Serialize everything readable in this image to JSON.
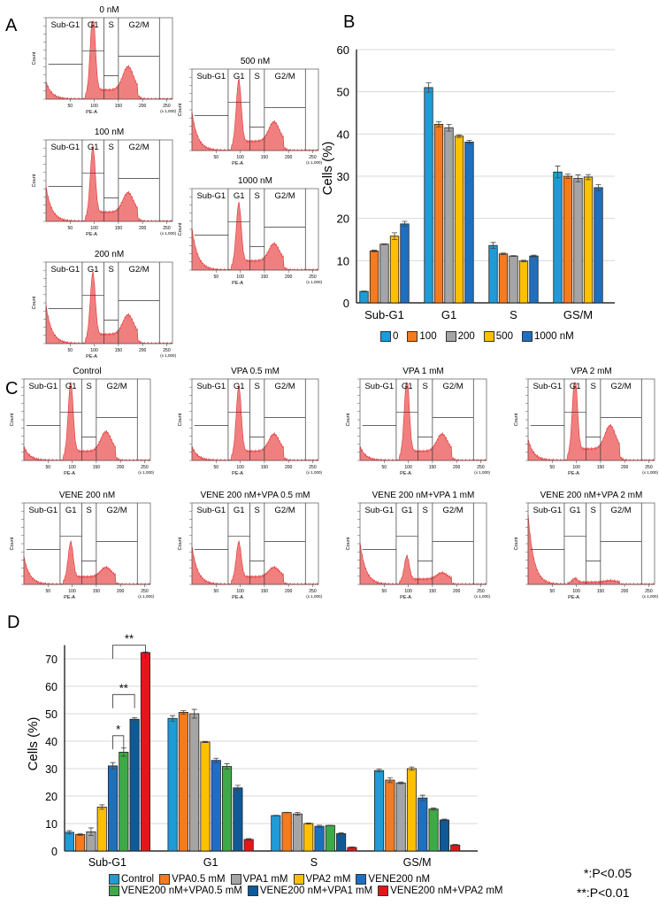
{
  "panels": {
    "A": "A",
    "B": "B",
    "C": "C",
    "D": "D"
  },
  "histogram_labels": {
    "gates": [
      "Sub-G1",
      "G1",
      "S",
      "G2/M"
    ],
    "y_axis": "Count",
    "x_axis": "PE-A",
    "x_unit": "(x 1,000)",
    "x_ticks": [
      "50",
      "100",
      "150",
      "200",
      "250"
    ]
  },
  "histograms_A": [
    {
      "title": "0 nM",
      "subg1": 0.25,
      "g1": 1.0,
      "s": 0.12,
      "g2": 0.3
    },
    {
      "title": "100 nM",
      "subg1": 0.5,
      "g1": 0.85,
      "s": 0.12,
      "g2": 0.25
    },
    {
      "title": "200 nM",
      "subg1": 0.55,
      "g1": 0.8,
      "s": 0.12,
      "g2": 0.25
    },
    {
      "title": "500 nM",
      "subg1": 0.55,
      "g1": 0.8,
      "s": 0.12,
      "g2": 0.25
    },
    {
      "title": "1000 nM",
      "subg1": 0.6,
      "g1": 0.75,
      "s": 0.12,
      "g2": 0.22
    }
  ],
  "histograms_C": [
    {
      "title": "Control",
      "subg1": 0.2,
      "g1": 0.9,
      "s": 0.12,
      "g2": 0.25
    },
    {
      "title": "VPA 0.5 mM",
      "subg1": 0.2,
      "g1": 0.85,
      "s": 0.12,
      "g2": 0.22
    },
    {
      "title": "VPA 1 mM",
      "subg1": 0.2,
      "g1": 0.95,
      "s": 0.12,
      "g2": 0.22
    },
    {
      "title": "VPA 2 mM",
      "subg1": 0.3,
      "g1": 0.95,
      "s": 0.15,
      "g2": 0.3
    },
    {
      "title": "VENE 200 nM",
      "subg1": 0.4,
      "g1": 0.45,
      "s": 0.1,
      "g2": 0.12
    },
    {
      "title": "VENE 200 nM+VPA 0.5 mM",
      "subg1": 0.55,
      "g1": 0.45,
      "s": 0.1,
      "g2": 0.12
    },
    {
      "title": "VENE 200 nM+VPA 1 mM",
      "subg1": 0.6,
      "g1": 0.3,
      "s": 0.07,
      "g2": 0.08
    },
    {
      "title": "VENE 200 nM+VPA 2 mM",
      "subg1": 1.0,
      "g1": 0.05,
      "s": 0.03,
      "g2": 0.02
    }
  ],
  "chart_data": [
    {
      "type": "bar",
      "ylabel": "Cells (%)",
      "ylim": [
        0,
        60
      ],
      "yticks": [
        0,
        10,
        20,
        30,
        40,
        50,
        60
      ],
      "grid": true,
      "legend_position": "bottom",
      "categories": [
        "Sub-G1",
        "G1",
        "S",
        "GS/M"
      ],
      "series": [
        {
          "name": "0",
          "color": "#1f9bd7",
          "values": [
            2.7,
            51,
            13.6,
            31
          ],
          "errors": [
            0.1,
            1.1,
            0.7,
            1.4
          ]
        },
        {
          "name": "100",
          "color": "#f47b20",
          "values": [
            12.3,
            42.3,
            11.6,
            30
          ],
          "errors": [
            0.2,
            0.6,
            0.2,
            0.5
          ]
        },
        {
          "name": "200",
          "color": "#a5a5a5",
          "values": [
            13.9,
            41.5,
            11.1,
            29.5
          ],
          "errors": [
            0.1,
            0.8,
            0.1,
            0.8
          ]
        },
        {
          "name": "500",
          "color": "#ffc000",
          "values": [
            15.8,
            39.5,
            9.9,
            29.8
          ],
          "errors": [
            0.8,
            0.3,
            0.2,
            0.6
          ]
        },
        {
          "name": "1000 nM",
          "color": "#1f6fc0",
          "values": [
            18.7,
            38.1,
            11.1,
            27.3
          ],
          "errors": [
            0.6,
            0.4,
            0.2,
            0.7
          ]
        }
      ]
    },
    {
      "type": "bar",
      "ylabel": "Cells (%)",
      "ylim": [
        0,
        75
      ],
      "yticks": [
        0,
        10,
        20,
        30,
        40,
        50,
        60,
        70
      ],
      "grid": true,
      "legend_position": "bottom",
      "categories": [
        "Sub-G1",
        "G1",
        "S",
        "GS/M"
      ],
      "series": [
        {
          "name": "Control",
          "color": "#1f9bd7",
          "values": [
            6.8,
            48.3,
            12.9,
            29.3
          ],
          "errors": [
            0.6,
            1.0,
            0.1,
            0.5
          ]
        },
        {
          "name": "VPA0.5 mM",
          "color": "#f47b20",
          "values": [
            6.0,
            50.5,
            14.0,
            25.8
          ],
          "errors": [
            0.3,
            0.6,
            0.1,
            0.9
          ]
        },
        {
          "name": "VPA1 mM",
          "color": "#a5a5a5",
          "values": [
            7.0,
            50.0,
            13.5,
            24.8
          ],
          "errors": [
            1.4,
            1.6,
            0.5,
            0.3
          ]
        },
        {
          "name": "VPA2 mM",
          "color": "#ffc000",
          "values": [
            16.0,
            39.7,
            10.0,
            30.0
          ],
          "errors": [
            0.8,
            0.2,
            0.2,
            0.6
          ]
        },
        {
          "name": "VENE200 nM",
          "color": "#1f6fc0",
          "values": [
            31.0,
            33.0,
            9.0,
            19.3
          ],
          "errors": [
            1.2,
            0.8,
            0.4,
            1.0
          ]
        },
        {
          "name": "VENE200 nM+VPA0.5 mM",
          "color": "#3daa47",
          "values": [
            36.0,
            30.8,
            9.3,
            15.3
          ],
          "errors": [
            1.5,
            1.0,
            0.1,
            0.4
          ]
        },
        {
          "name": "VENE200 nM+VPA1 mM",
          "color": "#0f5a96",
          "values": [
            48.0,
            23.0,
            6.3,
            11.3
          ],
          "errors": [
            0.6,
            0.9,
            0.3,
            0.3
          ]
        },
        {
          "name": "VENE200 nM+VPA2 mM",
          "color": "#e8141b",
          "values": [
            72.3,
            4.2,
            1.3,
            2.2
          ],
          "errors": [
            0.2,
            0.3,
            0.2,
            0.2
          ]
        }
      ],
      "annotations": [
        {
          "from": "VENE200 nM",
          "to": "VENE200 nM+VPA0.5 mM",
          "label": "*"
        },
        {
          "from": "VENE200 nM",
          "to": "VENE200 nM+VPA1 mM",
          "label": "**"
        },
        {
          "from": "VENE200 nM",
          "to": "VENE200 nM+VPA2 mM",
          "label": "**"
        }
      ],
      "pvalues": [
        "*:P<0.05",
        "**:P<0.01"
      ]
    }
  ]
}
